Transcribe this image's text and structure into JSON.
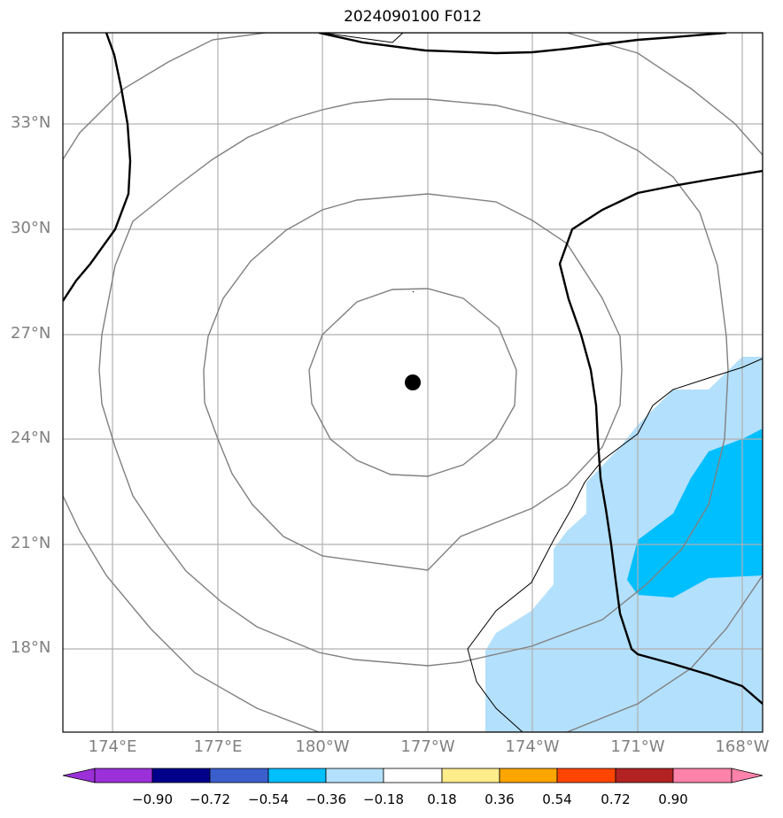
{
  "title": "2024090100 F012",
  "map": {
    "lat_labels": [
      "33°N",
      "30°N",
      "27°N",
      "24°N",
      "21°N",
      "18°N"
    ],
    "lon_labels": [
      "174°E",
      "177°E",
      "180°W",
      "177°W",
      "174°W",
      "171°W",
      "168°W"
    ],
    "storm_center": {
      "lat": 25.6,
      "lon_label": "177°W region"
    },
    "shading": {
      "color_light": "#b3e0fc",
      "color_mid": "#00bfff"
    }
  },
  "colorbar": {
    "ticks": [
      "−0.90",
      "−0.72",
      "−0.54",
      "−0.36",
      "−0.18",
      "0.18",
      "0.36",
      "0.54",
      "0.72",
      "0.90"
    ],
    "colors": [
      "#9b30d9",
      "#00008b",
      "#3a5fcd",
      "#00bfff",
      "#b3e0fc",
      "#ffffff",
      "#ffec8b",
      "#ffa500",
      "#ff4500",
      "#b22222",
      "#ff82ab"
    ]
  }
}
